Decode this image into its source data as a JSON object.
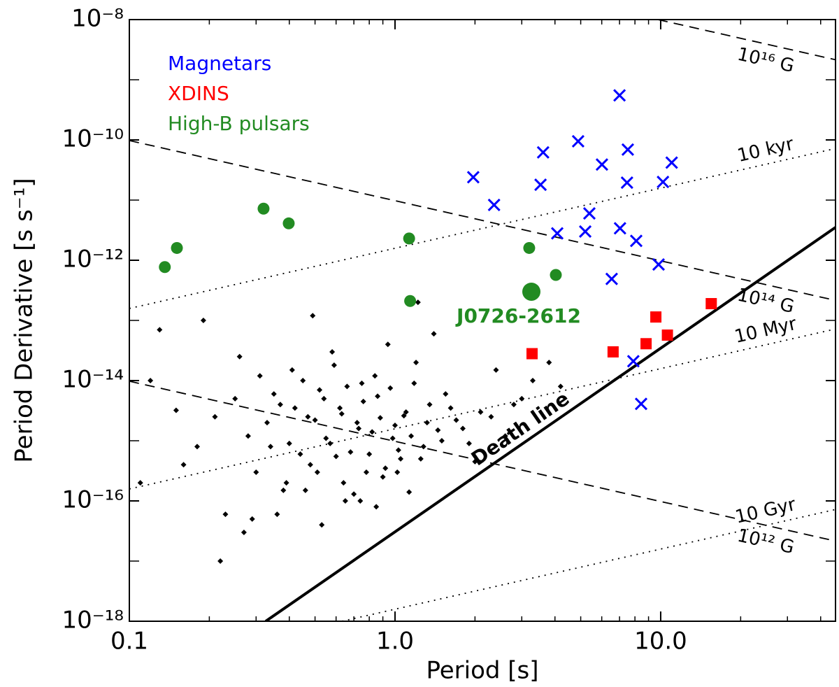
{
  "chart_data": {
    "type": "scatter",
    "xlabel": "Period  [s]",
    "ylabel": "Period Derivative  [s s⁻¹]",
    "xscale": "log",
    "yscale": "log",
    "xlim": [
      0.1,
      45.5
    ],
    "ylim": [
      1e-18,
      1e-08
    ],
    "xticks": [
      0.1,
      {
        "value": 1,
        "label": "1.0"
      },
      {
        "value": 10,
        "label": "10.0"
      }
    ],
    "xticks_minor": [
      0.2,
      0.3,
      0.4,
      0.5,
      0.6,
      0.7,
      0.8,
      0.9,
      2,
      3,
      4,
      5,
      6,
      7,
      8,
      9,
      20,
      30,
      40
    ],
    "yticks": [
      {
        "value": 1e-18,
        "label": "10⁻¹⁸"
      },
      {
        "value": 1e-16,
        "label": "10⁻¹⁶"
      },
      {
        "value": 1e-14,
        "label": "10⁻¹⁴"
      },
      {
        "value": 1e-12,
        "label": "10⁻¹²"
      },
      {
        "value": 1e-10,
        "label": "10⁻¹⁰"
      },
      {
        "value": 1e-08,
        "label": "10⁻⁸"
      }
    ],
    "yticks_minor": [
      1e-17,
      1e-15,
      1e-13,
      1e-11,
      1e-09
    ],
    "series": [
      {
        "marker": "diamond",
        "color": "#000000",
        "x": [
          0.12,
          0.15,
          0.18,
          0.21,
          0.25,
          0.28,
          0.3,
          0.33,
          0.35,
          0.38,
          0.4,
          0.42,
          0.45,
          0.48,
          0.5,
          0.52,
          0.55,
          0.58,
          0.6,
          0.63,
          0.66,
          0.7,
          0.73,
          0.76,
          0.8,
          0.84,
          0.88,
          0.92,
          0.96,
          1.0,
          1.05,
          1.1,
          1.15,
          1.2,
          1.28,
          1.35,
          1.45,
          1.55,
          1.7,
          1.9,
          2.1,
          2.4,
          2.8,
          3.3,
          4.2,
          0.11,
          0.13,
          0.16,
          0.19,
          0.23,
          0.26,
          0.29,
          0.31,
          0.34,
          0.37,
          0.39,
          0.41,
          0.44,
          0.47,
          0.49,
          0.51,
          0.54,
          0.57,
          0.59,
          0.62,
          0.65,
          0.68,
          0.72,
          0.75,
          0.78,
          0.82,
          0.86,
          0.9,
          0.94,
          0.98,
          1.03,
          1.08,
          1.13,
          1.18,
          1.25,
          1.32,
          1.4,
          1.5,
          1.62,
          1.8,
          2.0,
          2.3,
          2.6,
          3.0,
          3.8,
          0.22,
          0.27,
          0.36,
          0.46,
          0.53,
          0.64,
          0.74,
          0.85,
          1.02,
          1.22
        ],
        "values": [
          1e-14,
          3.2e-15,
          8e-16,
          2.5e-15,
          5e-15,
          1.2e-15,
          3e-16,
          2e-15,
          6e-15,
          1.5e-16,
          9e-16,
          3.5e-15,
          1e-14,
          4e-16,
          2.2e-15,
          7e-15,
          1.1e-15,
          3e-14,
          5.5e-16,
          2.8e-15,
          8e-15,
          1.3e-16,
          1.6e-15,
          4.5e-15,
          6e-16,
          1.2e-14,
          2.4e-15,
          3.5e-16,
          7.5e-15,
          1.8e-15,
          5e-16,
          3e-15,
          1.2e-15,
          2e-14,
          8e-16,
          4e-15,
          1.5e-15,
          6e-15,
          2.2e-15,
          9e-16,
          3e-15,
          1.5e-14,
          4e-15,
          1e-14,
          8e-15,
          2e-16,
          7e-14,
          4e-16,
          1e-13,
          6e-17,
          2.5e-14,
          5e-17,
          1.2e-14,
          8e-16,
          4e-15,
          2e-16,
          1.5e-14,
          6e-16,
          2.5e-15,
          1.2e-13,
          3e-16,
          5e-15,
          9e-16,
          1.8e-14,
          3.5e-15,
          1e-16,
          6.5e-16,
          2e-15,
          9e-15,
          3e-16,
          1.4e-15,
          5.5e-15,
          2.5e-16,
          4e-14,
          1.1e-15,
          7e-16,
          2.6e-15,
          1.4e-16,
          9e-15,
          5e-16,
          2e-15,
          6e-14,
          1e-15,
          3.5e-15,
          1.6e-15,
          4.5e-16,
          2.5e-15,
          1.2e-15,
          5e-15,
          2e-14,
          1e-17,
          3e-17,
          6e-17,
          1.5e-16,
          4e-17,
          2e-16,
          1e-16,
          8e-17,
          3e-16,
          2e-13
        ]
      },
      {
        "name": "Magnetars",
        "marker": "x",
        "color": "#0000ff",
        "x": [
          7.0,
          4.89,
          3.61,
          7.52,
          6.01,
          11.0,
          1.97,
          3.53,
          7.47,
          10.2,
          2.36,
          5.39,
          4.08,
          5.2,
          7.03,
          8.09,
          9.82,
          6.54,
          7.89,
          8.44
        ],
        "values": [
          5.5e-10,
          9.5e-11,
          6.2e-11,
          6.9e-11,
          3.9e-11,
          4.2e-11,
          2.4e-11,
          1.8e-11,
          1.95e-11,
          2e-11,
          8.3e-12,
          6e-12,
          2.8e-12,
          3e-12,
          3.4e-12,
          2.1e-12,
          8.5e-13,
          4.9e-13,
          2.1e-14,
          4.1e-15
        ]
      },
      {
        "name": "XDINS",
        "marker": "square",
        "color": "#ff0000",
        "x": [
          3.28,
          6.62,
          8.81,
          9.59,
          10.6,
          15.5
        ],
        "values": [
          2.8e-14,
          3e-14,
          4.1e-14,
          1.14e-13,
          5.7e-14,
          1.9e-13
        ]
      },
      {
        "name": "High-B pulsars",
        "marker": "circle",
        "color": "#228b22",
        "x": [
          0.136,
          0.151,
          0.32,
          0.398,
          1.13,
          1.14,
          3.2,
          4.03
        ],
        "values": [
          7.7e-13,
          1.6e-12,
          7.2e-12,
          4.1e-12,
          2.3e-12,
          2.1e-13,
          1.6e-12,
          5.7e-13
        ]
      }
    ],
    "highlight": {
      "label": "J0726-2612",
      "x": 3.26,
      "y": 3e-13,
      "color": "#228b22"
    },
    "lines": [
      {
        "label": "10¹⁶ G",
        "style": "dashed",
        "x": [
          9.77,
          45.5
        ],
        "y": [
          1e-08,
          2.15e-09
        ]
      },
      {
        "label": "10¹⁴ G",
        "style": "dashed",
        "x": [
          0.1,
          45.5
        ],
        "y": [
          9.77e-11,
          2.15e-13
        ]
      },
      {
        "label": "10¹² G",
        "style": "dashed",
        "x": [
          0.1,
          45.5
        ],
        "y": [
          9.77e-15,
          2.15e-17
        ]
      },
      {
        "label": "10 kyr",
        "style": "dotted",
        "x": [
          0.1,
          45.5
        ],
        "y": [
          1.58e-13,
          7.2e-11
        ]
      },
      {
        "label": "10 Myr",
        "style": "dotted",
        "x": [
          0.1,
          45.5
        ],
        "y": [
          1.58e-16,
          7.2e-14
        ]
      },
      {
        "label": "10 Gyr",
        "style": "dotted",
        "x": [
          0.631,
          45.5
        ],
        "y": [
          1e-18,
          7.2e-17
        ]
      },
      {
        "label": "Death line",
        "style": "solid",
        "x": [
          0.326,
          45.5
        ],
        "y": [
          1e-18,
          3.52e-12
        ]
      }
    ]
  }
}
